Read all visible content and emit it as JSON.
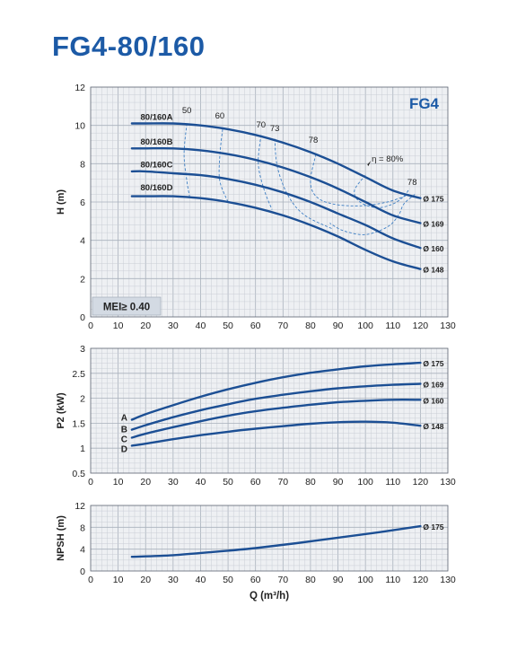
{
  "title": "FG4-80/160",
  "colors": {
    "title": "#1c5aa6",
    "curve": "#1c4f94",
    "efficiency": "#3e7fc4",
    "grid": "#c9ced6",
    "plot_bg": "#eef0f3",
    "mei_bg": "#d3dae3"
  },
  "chart_data": [
    {
      "id": "head",
      "type": "line",
      "xlabel": "",
      "ylabel": "H (m)",
      "xlim": [
        0,
        130
      ],
      "ylim": [
        0,
        12
      ],
      "xticks": [
        0,
        10,
        20,
        30,
        40,
        50,
        60,
        70,
        80,
        90,
        100,
        110,
        120,
        130
      ],
      "yticks": [
        0,
        2,
        4,
        6,
        8,
        10,
        12
      ],
      "grid": true,
      "badge": "FG4",
      "note": "MEI≥ 0.40",
      "series": [
        {
          "name": "80/160A",
          "end_label": "Ø 175",
          "x": [
            15,
            20,
            30,
            40,
            50,
            60,
            70,
            80,
            90,
            100,
            110,
            120
          ],
          "y": [
            10.1,
            10.1,
            10.1,
            10.0,
            9.8,
            9.5,
            9.1,
            8.6,
            8.0,
            7.3,
            6.6,
            6.2
          ]
        },
        {
          "name": "80/160B",
          "end_label": "Ø 169",
          "x": [
            15,
            20,
            30,
            40,
            50,
            60,
            70,
            80,
            90,
            100,
            110,
            120
          ],
          "y": [
            8.8,
            8.8,
            8.8,
            8.7,
            8.5,
            8.2,
            7.8,
            7.3,
            6.7,
            6.0,
            5.3,
            4.9
          ]
        },
        {
          "name": "80/160C",
          "end_label": "Ø 160",
          "x": [
            15,
            20,
            30,
            40,
            50,
            60,
            70,
            80,
            90,
            100,
            110,
            120
          ],
          "y": [
            7.6,
            7.6,
            7.5,
            7.4,
            7.2,
            6.9,
            6.5,
            6.0,
            5.4,
            4.8,
            4.1,
            3.6
          ]
        },
        {
          "name": "80/160D",
          "end_label": "Ø 148",
          "x": [
            15,
            20,
            30,
            40,
            50,
            60,
            70,
            80,
            90,
            100,
            110,
            120
          ],
          "y": [
            6.3,
            6.3,
            6.3,
            6.2,
            6.0,
            5.7,
            5.3,
            4.8,
            4.2,
            3.5,
            2.9,
            2.5
          ]
        }
      ],
      "efficiency_curves": [
        {
          "label": "50",
          "x": [
            35,
            34,
            35,
            36
          ],
          "y": [
            10.1,
            8.5,
            7.1,
            6.3
          ]
        },
        {
          "label": "60",
          "x": [
            48,
            47,
            47,
            50
          ],
          "y": [
            9.8,
            8.4,
            7.1,
            6.0
          ]
        },
        {
          "label": "70",
          "x": [
            62,
            61,
            63,
            66
          ],
          "y": [
            9.5,
            8.0,
            6.7,
            5.6
          ]
        },
        {
          "label": "73",
          "x": [
            67,
            68,
            72,
            78,
            88
          ],
          "y": [
            9.3,
            7.8,
            6.3,
            5.3,
            4.6
          ]
        },
        {
          "label": "78",
          "x": [
            82,
            80,
            82,
            88,
            98,
            108,
            116
          ],
          "y": [
            8.5,
            7.1,
            6.3,
            5.9,
            5.8,
            6.0,
            6.4
          ]
        },
        {
          "label": "η = 80%",
          "x": [
            100,
            96,
            98,
            104,
            110,
            114,
            116
          ],
          "y": [
            7.4,
            6.6,
            6.0,
            5.7,
            5.9,
            6.3,
            6.7
          ]
        },
        {
          "label": "78",
          "x": [
            118,
            114,
            112,
            108,
            100,
            92,
            87
          ],
          "y": [
            6.4,
            5.9,
            5.3,
            4.7,
            4.3,
            4.5,
            4.9
          ]
        }
      ]
    },
    {
      "id": "power",
      "type": "line",
      "xlabel": "",
      "ylabel": "P2 (kW)",
      "xlim": [
        0,
        130
      ],
      "ylim": [
        0.5,
        3
      ],
      "xticks": [
        0,
        10,
        20,
        30,
        40,
        50,
        60,
        70,
        80,
        90,
        100,
        110,
        120,
        130
      ],
      "yticks": [
        0.5,
        1,
        1.5,
        2,
        2.5,
        3
      ],
      "grid": true,
      "series": [
        {
          "name": "A",
          "end_label": "Ø 175",
          "x": [
            15,
            20,
            30,
            40,
            50,
            60,
            70,
            80,
            90,
            100,
            110,
            120
          ],
          "y": [
            1.57,
            1.68,
            1.86,
            2.03,
            2.18,
            2.31,
            2.42,
            2.51,
            2.58,
            2.64,
            2.68,
            2.71
          ]
        },
        {
          "name": "B",
          "end_label": "Ø 169",
          "x": [
            15,
            20,
            30,
            40,
            50,
            60,
            70,
            80,
            90,
            100,
            110,
            120
          ],
          "y": [
            1.37,
            1.46,
            1.62,
            1.76,
            1.88,
            1.99,
            2.07,
            2.14,
            2.2,
            2.24,
            2.27,
            2.29
          ]
        },
        {
          "name": "C",
          "end_label": "Ø 160",
          "x": [
            15,
            20,
            30,
            40,
            50,
            60,
            70,
            80,
            90,
            100,
            110,
            120
          ],
          "y": [
            1.21,
            1.29,
            1.42,
            1.54,
            1.65,
            1.74,
            1.81,
            1.87,
            1.92,
            1.95,
            1.97,
            1.97
          ]
        },
        {
          "name": "D",
          "end_label": "Ø 148",
          "x": [
            15,
            20,
            30,
            40,
            50,
            60,
            70,
            80,
            90,
            100,
            110,
            120
          ],
          "y": [
            1.05,
            1.09,
            1.18,
            1.26,
            1.33,
            1.39,
            1.44,
            1.49,
            1.52,
            1.53,
            1.51,
            1.45
          ]
        }
      ]
    },
    {
      "id": "npsh",
      "type": "line",
      "xlabel": "Q (m³/h)",
      "ylabel": "NPSH (m)",
      "xlim": [
        0,
        130
      ],
      "ylim": [
        0,
        12
      ],
      "xticks": [
        0,
        10,
        20,
        30,
        40,
        50,
        60,
        70,
        80,
        90,
        100,
        110,
        120,
        130
      ],
      "yticks": [
        0,
        4,
        8,
        12
      ],
      "grid": true,
      "series": [
        {
          "name": "",
          "end_label": "Ø 175",
          "x": [
            15,
            30,
            45,
            60,
            75,
            90,
            105,
            120
          ],
          "y": [
            2.6,
            2.9,
            3.5,
            4.2,
            5.1,
            6.1,
            7.1,
            8.2
          ]
        }
      ]
    }
  ]
}
